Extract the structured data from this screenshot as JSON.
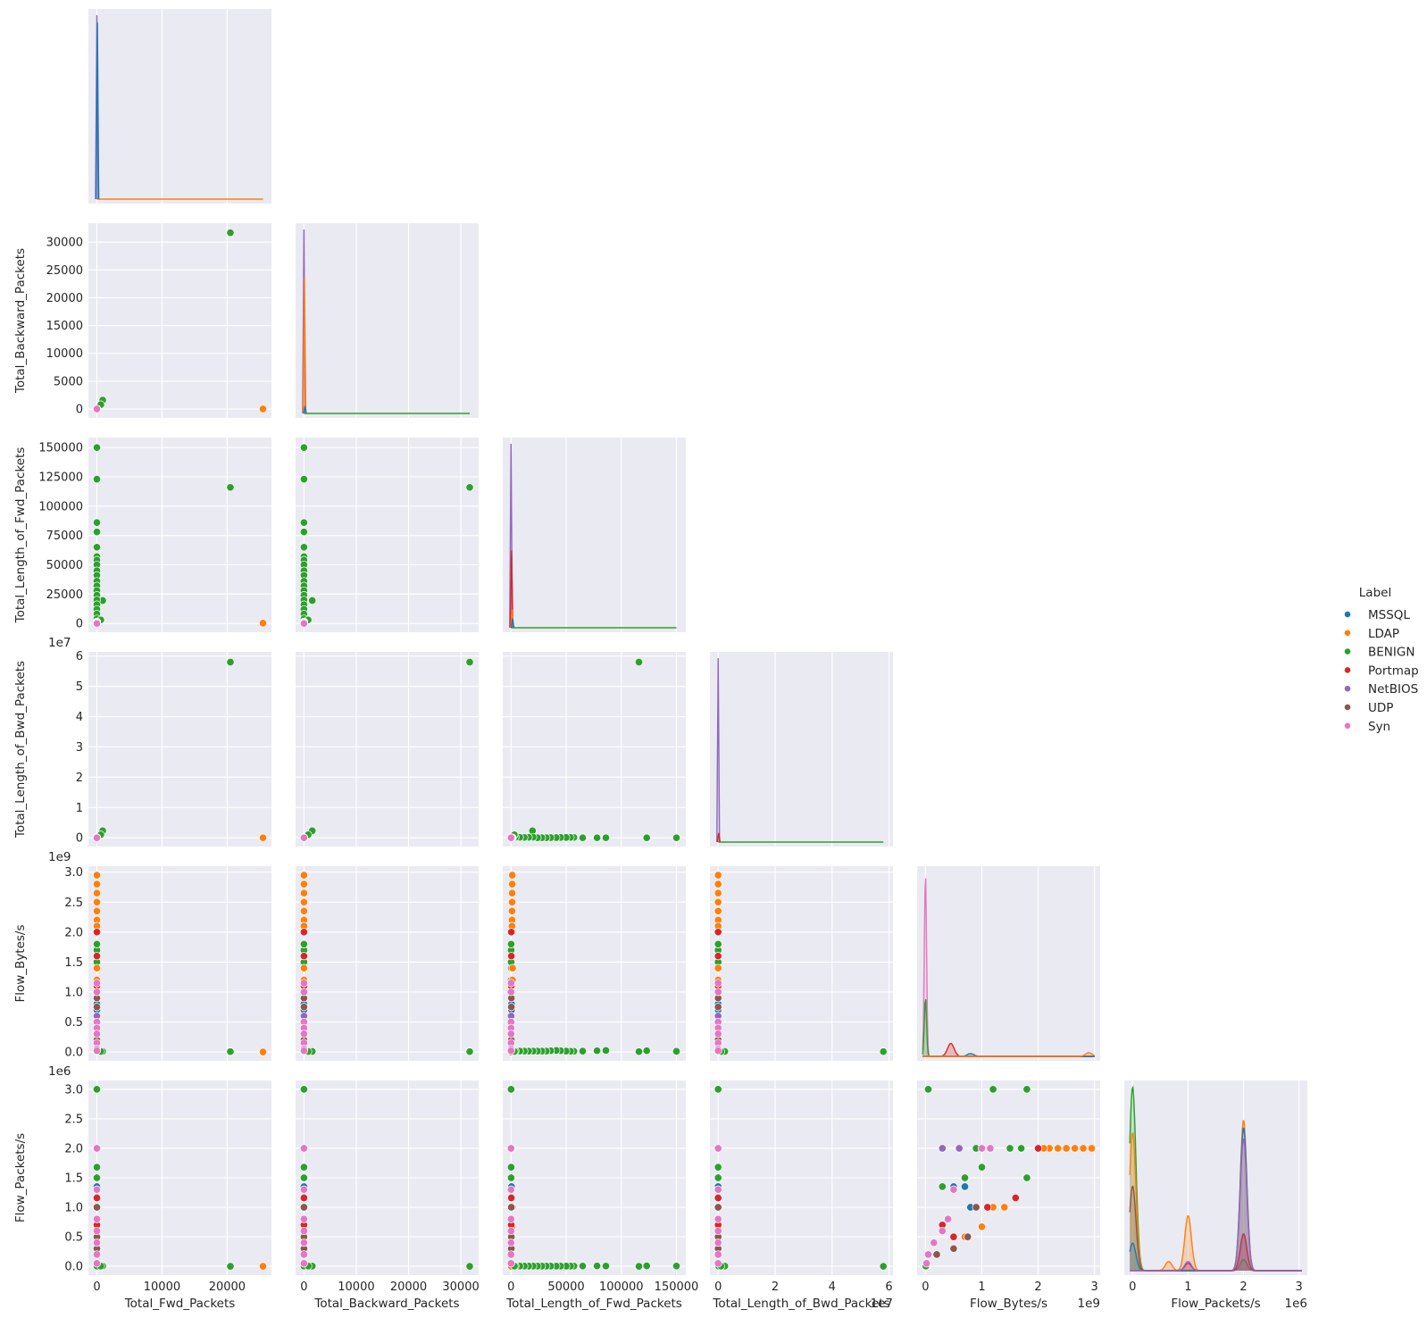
{
  "chart_data": {
    "type": "scatter",
    "title": "",
    "kind": "pairplot-lower-triangle",
    "diagonal_kind": "kde",
    "grid": true,
    "legend": {
      "title": "Label",
      "placement": "right",
      "entries": [
        "MSSQL",
        "LDAP",
        "BENIGN",
        "Portmap",
        "NetBIOS",
        "UDP",
        "Syn"
      ]
    },
    "colors": {
      "MSSQL": "#1f77b4",
      "LDAP": "#ff7f0e",
      "BENIGN": "#2ca02c",
      "Portmap": "#d62728",
      "NetBIOS": "#9467bd",
      "UDP": "#8c564b",
      "Syn": "#e377c2"
    },
    "variables": [
      {
        "name": "Total_Fwd_Packets",
        "range": [
          -1300,
          26800
        ],
        "ticks": [
          0,
          10000,
          20000
        ],
        "tick_labels": [
          "0",
          "10000",
          "20000"
        ],
        "offset": ""
      },
      {
        "name": "Total_Backward_Packets",
        "range": [
          -1600,
          33400
        ],
        "ticks": [
          0,
          5000,
          10000,
          15000,
          20000,
          25000,
          30000
        ],
        "tick_labels": [
          "0",
          "5000",
          "10000",
          "15000",
          "20000",
          "25000",
          "30000"
        ],
        "x_ticks": [
          0,
          10000,
          20000,
          30000
        ],
        "x_tick_labels": [
          "0",
          "10000",
          "20000",
          "30000"
        ],
        "offset": ""
      },
      {
        "name": "Total_Length_of_Fwd_Packets",
        "range": [
          -7500,
          158500
        ],
        "ticks": [
          0,
          25000,
          50000,
          75000,
          100000,
          125000,
          150000
        ],
        "tick_labels": [
          "0",
          "25000",
          "50000",
          "75000",
          "100000",
          "125000",
          "150000"
        ],
        "x_ticks": [
          0,
          50000,
          100000,
          150000
        ],
        "x_tick_labels": [
          "0",
          "50000",
          "100000",
          "150000"
        ],
        "offset": ""
      },
      {
        "name": "Total_Length_of_Bwd_Packets",
        "range": [
          -2900000,
          61400000
        ],
        "ticks": [
          0,
          10000000,
          20000000,
          30000000,
          40000000,
          50000000,
          60000000
        ],
        "tick_labels": [
          "0",
          "1",
          "2",
          "3",
          "4",
          "5",
          "6"
        ],
        "x_ticks": [
          0,
          20000000,
          40000000,
          60000000
        ],
        "x_tick_labels": [
          "0",
          "2",
          "4",
          "6"
        ],
        "offset": "1e7"
      },
      {
        "name": "Flow_Bytes/s",
        "range": [
          -148000000,
          3100000000
        ],
        "ticks": [
          0,
          500000000,
          1000000000,
          1500000000,
          2000000000,
          2500000000,
          3000000000
        ],
        "tick_labels": [
          "0.0",
          "0.5",
          "1.0",
          "1.5",
          "2.0",
          "2.5",
          "3.0"
        ],
        "x_ticks": [
          0,
          1000000000,
          2000000000,
          3000000000
        ],
        "x_tick_labels": [
          "0",
          "1",
          "2",
          "3"
        ],
        "offset": "1e9"
      },
      {
        "name": "Flow_Packets/s",
        "range": [
          -150000,
          3150000
        ],
        "ticks": [
          0,
          500000,
          1000000,
          1500000,
          2000000,
          2500000,
          3000000
        ],
        "tick_labels": [
          "0.0",
          "0.5",
          "1.0",
          "1.5",
          "2.0",
          "2.5",
          "3.0"
        ],
        "x_ticks": [
          0,
          1000000,
          2000000,
          3000000
        ],
        "x_tick_labels": [
          "0",
          "1",
          "2",
          "3"
        ],
        "offset": "1e6"
      }
    ],
    "points": [
      {
        "label": "BENIGN",
        "values": [
          20500,
          31700,
          116000,
          58000000,
          5000000,
          100
        ]
      },
      {
        "label": "LDAP",
        "values": [
          25500,
          5,
          160,
          0,
          1000,
          20
        ]
      },
      {
        "label": "BENIGN",
        "values": [
          900,
          1600,
          19500,
          2300000,
          8000000,
          3000
        ]
      },
      {
        "label": "BENIGN",
        "values": [
          3,
          0,
          150000,
          0,
          10000000,
          5000
        ]
      },
      {
        "label": "BENIGN",
        "values": [
          4,
          1,
          123000,
          0,
          20000000,
          8000
        ]
      },
      {
        "label": "BENIGN",
        "values": [
          4,
          1,
          86000,
          0,
          25000000,
          4000
        ]
      },
      {
        "label": "BENIGN",
        "values": [
          3,
          1,
          78000,
          0,
          20000000,
          6000
        ]
      },
      {
        "label": "BENIGN",
        "values": [
          3,
          1,
          65000,
          0,
          15000000,
          5000
        ]
      },
      {
        "label": "BENIGN",
        "values": [
          3,
          1,
          57000,
          100000,
          12000000,
          3000
        ]
      },
      {
        "label": "BENIGN",
        "values": [
          3,
          1,
          54000,
          100000,
          12000000,
          3000
        ]
      },
      {
        "label": "BENIGN",
        "values": [
          3,
          1,
          50000,
          80000,
          15000000,
          3000
        ]
      },
      {
        "label": "BENIGN",
        "values": [
          3,
          1,
          45000,
          70000,
          20000000,
          3000
        ]
      },
      {
        "label": "BENIGN",
        "values": [
          3,
          1,
          41000,
          50000,
          25000000,
          3000
        ]
      },
      {
        "label": "BENIGN",
        "values": [
          3,
          1,
          36000,
          40000,
          20000000,
          3000
        ]
      },
      {
        "label": "BENIGN",
        "values": [
          3,
          1,
          32000,
          30000,
          15000000,
          3000
        ]
      },
      {
        "label": "BENIGN",
        "values": [
          3,
          1,
          28000,
          20000,
          15000000,
          3000
        ]
      },
      {
        "label": "BENIGN",
        "values": [
          3,
          1,
          24000,
          10000,
          15000000,
          3000
        ]
      },
      {
        "label": "BENIGN",
        "values": [
          3,
          1,
          20000,
          200000,
          15000000,
          3000
        ]
      },
      {
        "label": "BENIGN",
        "values": [
          3,
          1,
          16000,
          150000,
          15000000,
          3000
        ]
      },
      {
        "label": "BENIGN",
        "values": [
          3,
          1,
          12000,
          100000,
          15000000,
          3000
        ]
      },
      {
        "label": "BENIGN",
        "values": [
          3,
          1,
          8000,
          150000,
          15000000,
          3000
        ]
      },
      {
        "label": "BENIGN",
        "values": [
          3,
          1,
          4000,
          180000,
          15000000,
          3000
        ]
      },
      {
        "label": "BENIGN",
        "values": [
          600,
          800,
          3000,
          1000000,
          8000000,
          3000
        ]
      },
      {
        "label": "BENIGN",
        "values": [
          2,
          0,
          200,
          0,
          1400000000,
          1000000
        ]
      },
      {
        "label": "BENIGN",
        "values": [
          2,
          0,
          150,
          0,
          1700000000,
          2000000
        ]
      },
      {
        "label": "BENIGN",
        "values": [
          2,
          0,
          120,
          0,
          1800000000,
          1500000
        ]
      },
      {
        "label": "BENIGN",
        "values": [
          1,
          0,
          100,
          0,
          1200000000,
          3000000
        ]
      },
      {
        "label": "BENIGN",
        "values": [
          1,
          0,
          80,
          0,
          1800000000,
          3000000
        ]
      },
      {
        "label": "BENIGN",
        "values": [
          1,
          0,
          60,
          0,
          50000000,
          3000000
        ]
      },
      {
        "label": "BENIGN",
        "values": [
          2,
          0,
          90,
          0,
          1000000000,
          1680000
        ]
      },
      {
        "label": "BENIGN",
        "values": [
          2,
          0,
          100,
          0,
          700000000,
          1500000
        ]
      },
      {
        "label": "BENIGN",
        "values": [
          2,
          0,
          110,
          0,
          300000000,
          1350000
        ]
      },
      {
        "label": "BENIGN",
        "values": [
          2,
          0,
          100,
          0,
          900000000,
          2000000
        ]
      },
      {
        "label": "BENIGN",
        "values": [
          2,
          0,
          100,
          0,
          1500000000,
          2000000
        ]
      },
      {
        "label": "LDAP",
        "values": [
          2,
          0,
          1200,
          0,
          2950000000,
          2000000
        ]
      },
      {
        "label": "LDAP",
        "values": [
          2,
          0,
          1100,
          0,
          2800000000,
          2000000
        ]
      },
      {
        "label": "LDAP",
        "values": [
          2,
          0,
          1000,
          0,
          2650000000,
          2000000
        ]
      },
      {
        "label": "LDAP",
        "values": [
          2,
          0,
          1000,
          0,
          2500000000,
          2000000
        ]
      },
      {
        "label": "LDAP",
        "values": [
          2,
          0,
          900,
          0,
          2350000000,
          2000000
        ]
      },
      {
        "label": "LDAP",
        "values": [
          2,
          0,
          900,
          0,
          2200000000,
          2000000
        ]
      },
      {
        "label": "LDAP",
        "values": [
          2,
          0,
          800,
          0,
          2100000000,
          2000000
        ]
      },
      {
        "label": "LDAP",
        "values": [
          2,
          0,
          1400,
          0,
          1400000000,
          1000000
        ]
      },
      {
        "label": "LDAP",
        "values": [
          2,
          0,
          1300,
          0,
          1200000000,
          1000000
        ]
      },
      {
        "label": "LDAP",
        "values": [
          2,
          0,
          1000,
          0,
          1000000000,
          670000
        ]
      },
      {
        "label": "LDAP",
        "values": [
          2,
          0,
          800,
          0,
          700000000,
          500000
        ]
      },
      {
        "label": "Portmap",
        "values": [
          2,
          0,
          300,
          0,
          2000000000,
          2000000
        ]
      },
      {
        "label": "Portmap",
        "values": [
          2,
          0,
          250,
          0,
          1600000000,
          1160000
        ]
      },
      {
        "label": "Portmap",
        "values": [
          2,
          0,
          200,
          0,
          1100000000,
          1000000
        ]
      },
      {
        "label": "Portmap",
        "values": [
          2,
          0,
          200,
          0,
          500000000,
          500000
        ]
      },
      {
        "label": "Portmap",
        "values": [
          2,
          0,
          180,
          0,
          300000000,
          700000
        ]
      },
      {
        "label": "MSSQL",
        "values": [
          2,
          0,
          400,
          0,
          500000000,
          1350000
        ]
      },
      {
        "label": "MSSQL",
        "values": [
          2,
          0,
          400,
          0,
          700000000,
          1350000
        ]
      },
      {
        "label": "MSSQL",
        "values": [
          2,
          0,
          400,
          0,
          800000000,
          1000000
        ]
      },
      {
        "label": "NetBIOS",
        "values": [
          2,
          0,
          100,
          0,
          300000000,
          2000000
        ]
      },
      {
        "label": "NetBIOS",
        "values": [
          2,
          0,
          100,
          0,
          600000000,
          2000000
        ]
      },
      {
        "label": "UDP",
        "values": [
          2,
          0,
          300,
          0,
          1000000000,
          2000000
        ]
      },
      {
        "label": "UDP",
        "values": [
          2,
          0,
          300,
          0,
          750000000,
          500000
        ]
      },
      {
        "label": "UDP",
        "values": [
          2,
          0,
          300,
          0,
          500000000,
          300000
        ]
      },
      {
        "label": "UDP",
        "values": [
          2,
          0,
          300,
          0,
          900000000,
          1000000
        ]
      },
      {
        "label": "UDP",
        "values": [
          2,
          0,
          300,
          0,
          200000000,
          200000
        ]
      },
      {
        "label": "Syn",
        "values": [
          3,
          1,
          0,
          0,
          1150000000,
          2000000
        ]
      },
      {
        "label": "Syn",
        "values": [
          3,
          1,
          0,
          0,
          500000000,
          1300000
        ]
      },
      {
        "label": "Syn",
        "values": [
          3,
          1,
          0,
          0,
          400000000,
          800000
        ]
      },
      {
        "label": "Syn",
        "values": [
          3,
          1,
          0,
          0,
          300000000,
          600000
        ]
      },
      {
        "label": "Syn",
        "values": [
          3,
          1,
          0,
          0,
          150000000,
          400000
        ]
      },
      {
        "label": "Syn",
        "values": [
          3,
          1,
          0,
          0,
          50000000,
          200000
        ]
      },
      {
        "label": "Syn",
        "values": [
          3,
          1,
          0,
          0,
          20000000,
          50000
        ]
      },
      {
        "label": "Syn",
        "values": [
          3,
          1,
          0,
          0,
          1000000000,
          2000000
        ]
      }
    ],
    "diagonal": [
      {
        "variable": "Total_Fwd_Packets",
        "peak_order": [
          "NetBIOS",
          "MSSQL",
          "LDAP"
        ],
        "peak_heights": [
          1.0,
          0.96,
          0.0
        ],
        "tail_series": [
          "LDAP"
        ],
        "tail_end": 25500
      },
      {
        "variable": "Total_Backward_Packets",
        "peak_order": [
          "NetBIOS",
          "LDAP",
          "MSSQL"
        ],
        "peak_heights": [
          1.0,
          0.74,
          0.04
        ],
        "tail_series": [
          "BENIGN"
        ],
        "tail_end": 31700
      },
      {
        "variable": "Total_Length_of_Fwd_Packets",
        "peak_order": [
          "NetBIOS",
          "Portmap",
          "LDAP",
          "MSSQL"
        ],
        "peak_heights": [
          1.0,
          0.42,
          0.1,
          0.05
        ],
        "tail_series": [
          "BENIGN"
        ],
        "tail_end": 150000
      },
      {
        "variable": "Total_Length_of_Bwd_Packets",
        "peak_order": [
          "NetBIOS",
          "Portmap"
        ],
        "peak_heights": [
          1.0,
          0.05
        ],
        "tail_series": [
          "BENIGN"
        ],
        "tail_end": 58000000
      },
      {
        "variable": "Flow_Bytes/s",
        "series": [
          {
            "name": "Syn",
            "peaks": [
              [
                0,
                1.0
              ]
            ]
          },
          {
            "name": "BENIGN",
            "peaks": [
              [
                0,
                0.32
              ]
            ]
          },
          {
            "name": "Portmap",
            "peaks": [
              [
                450000000,
                0.07
              ]
            ]
          },
          {
            "name": "MSSQL",
            "peaks": [
              [
                800000000,
                0.015
              ]
            ]
          },
          {
            "name": "LDAP",
            "peaks": [
              [
                2900000000,
                0.02
              ]
            ]
          }
        ]
      },
      {
        "variable": "Flow_Packets/s",
        "series": [
          {
            "name": "BENIGN",
            "peaks": [
              [
                0,
                1.0
              ],
              [
                2000000,
                0.06
              ]
            ]
          },
          {
            "name": "LDAP",
            "peaks": [
              [
                0,
                0.75
              ],
              [
                1000000,
                0.3
              ],
              [
                2000000,
                0.82
              ],
              [
                650000,
                0.05
              ]
            ]
          },
          {
            "name": "UDP",
            "peaks": [
              [
                0,
                0.46
              ],
              [
                2000000,
                0.2
              ]
            ]
          },
          {
            "name": "MSSQL",
            "peaks": [
              [
                0,
                0.15
              ],
              [
                2000000,
                0.78
              ]
            ]
          },
          {
            "name": "Portmap",
            "peaks": [
              [
                2000000,
                0.2
              ],
              [
                1000000,
                0.04
              ]
            ]
          },
          {
            "name": "NetBIOS",
            "peaks": [
              [
                2000000,
                0.72
              ],
              [
                1000000,
                0.05
              ]
            ]
          }
        ]
      }
    ]
  }
}
